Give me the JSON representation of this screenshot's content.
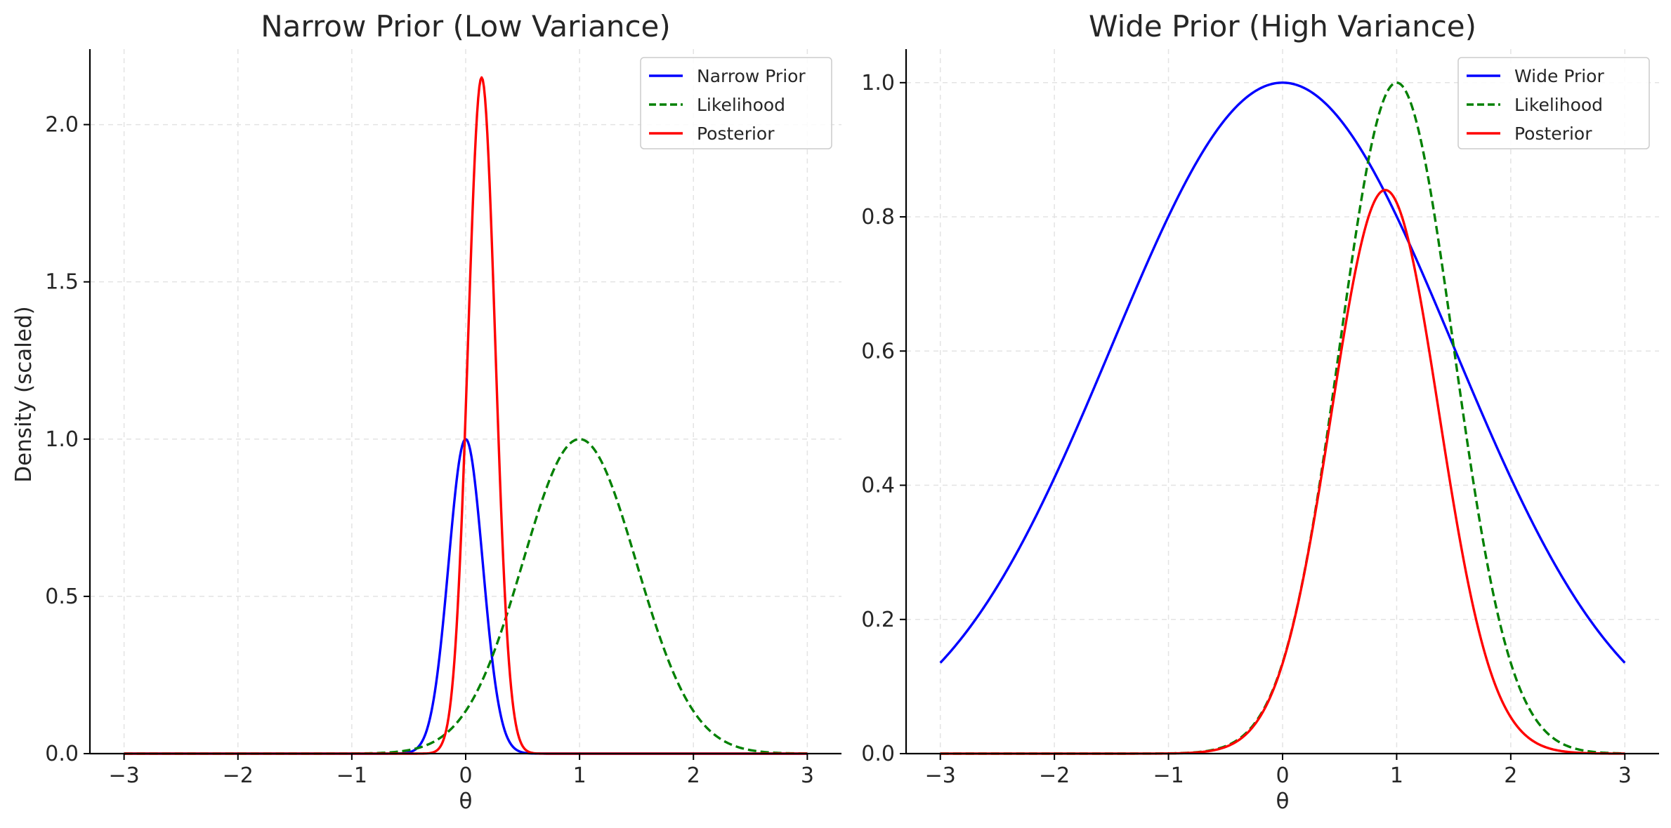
{
  "chart_data": [
    {
      "type": "line",
      "title": "Narrow Prior (Low Variance)",
      "xlabel": "θ",
      "ylabel": "Density (scaled)",
      "xlim": [
        -3.3,
        3.3
      ],
      "ylim": [
        0,
        2.24
      ],
      "grid": true,
      "legend_position": "top-right",
      "xticks": [
        -3,
        -2,
        -1,
        0,
        1,
        2,
        3
      ],
      "xtick_labels": [
        "−3",
        "−2",
        "−1",
        "0",
        "1",
        "2",
        "3"
      ],
      "yticks": [
        0,
        0.5,
        1,
        1.5,
        2
      ],
      "ytick_labels": [
        "0.0",
        "0.5",
        "1.0",
        "1.5",
        "2.0"
      ],
      "x_range": [
        -3,
        3
      ],
      "series": [
        {
          "name": "Narrow Prior",
          "color": "#0000ff",
          "style": "solid",
          "kind": "gaussian",
          "mean": 0,
          "sd": 0.15,
          "peak": 1.0
        },
        {
          "name": "Likelihood",
          "color": "#008000",
          "style": "dashed",
          "kind": "gaussian",
          "mean": 1,
          "sd": 0.5,
          "peak": 1.0
        },
        {
          "name": "Posterior",
          "color": "#ff0000",
          "style": "solid",
          "kind": "gaussian",
          "mean": 0.14,
          "sd": 0.12,
          "peak": 2.15
        }
      ]
    },
    {
      "type": "line",
      "title": "Wide Prior (High Variance)",
      "xlabel": "θ",
      "ylabel": "",
      "xlim": [
        -3.3,
        3.3
      ],
      "ylim": [
        0,
        1.05
      ],
      "grid": true,
      "legend_position": "top-right",
      "xticks": [
        -3,
        -2,
        -1,
        0,
        1,
        2,
        3
      ],
      "xtick_labels": [
        "−3",
        "−2",
        "−1",
        "0",
        "1",
        "2",
        "3"
      ],
      "yticks": [
        0,
        0.2,
        0.4,
        0.6,
        0.8,
        1.0
      ],
      "ytick_labels": [
        "0.0",
        "0.2",
        "0.4",
        "0.6",
        "0.8",
        "1.0"
      ],
      "x_range": [
        -3,
        3
      ],
      "series": [
        {
          "name": "Wide Prior",
          "color": "#0000ff",
          "style": "solid",
          "kind": "gaussian",
          "mean": 0,
          "sd": 1.5,
          "peak": 1.0
        },
        {
          "name": "Likelihood",
          "color": "#008000",
          "style": "dashed",
          "kind": "gaussian",
          "mean": 1,
          "sd": 0.5,
          "peak": 1.0
        },
        {
          "name": "Posterior",
          "color": "#ff0000",
          "style": "solid",
          "kind": "gaussian",
          "mean": 0.9,
          "sd": 0.47,
          "peak": 0.84
        }
      ]
    }
  ]
}
